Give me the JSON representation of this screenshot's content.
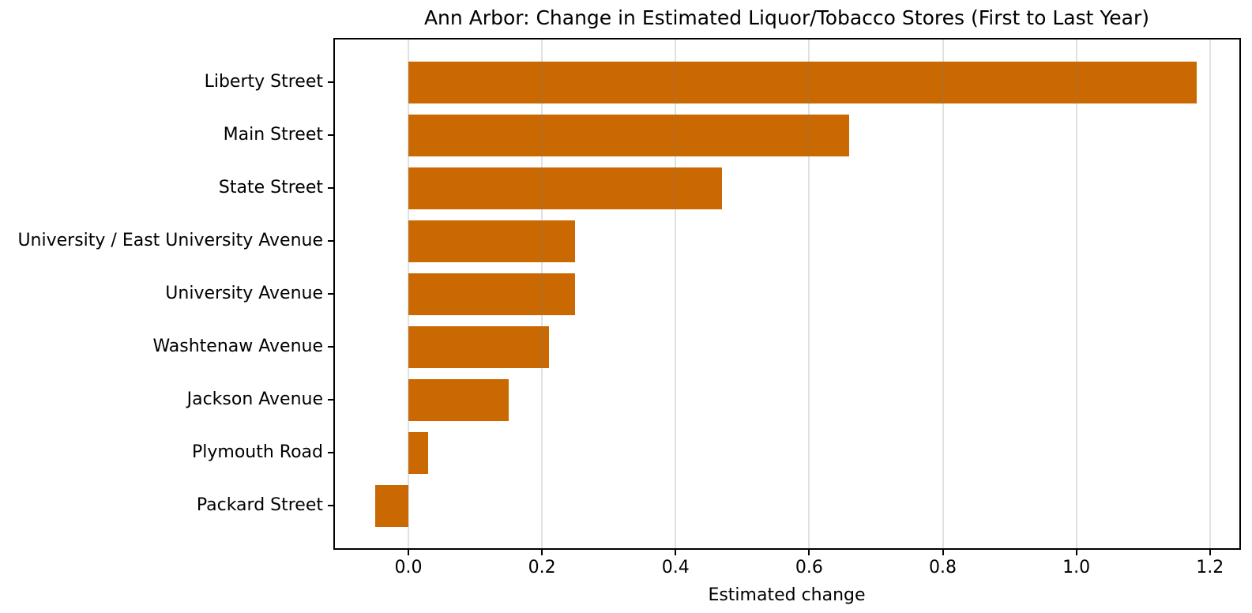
{
  "chart_data": {
    "type": "bar",
    "orientation": "horizontal",
    "title": "Ann Arbor: Change in Estimated Liquor/Tobacco Stores (First to Last Year)",
    "xlabel": "Estimated change",
    "ylabel": "",
    "categories": [
      "Liberty Street",
      "Main Street",
      "State Street",
      "University / East University Avenue",
      "University Avenue",
      "Washtenaw Avenue",
      "Jackson Avenue",
      "Plymouth Road",
      "Packard Street"
    ],
    "values": [
      1.18,
      0.66,
      0.47,
      0.25,
      0.25,
      0.21,
      0.15,
      0.03,
      -0.05
    ],
    "xlim": [
      -0.11,
      1.244
    ],
    "xticks": [
      0.0,
      0.2,
      0.4,
      0.6,
      0.8,
      1.0,
      1.2
    ],
    "xtick_labels": [
      "0.0",
      "0.2",
      "0.4",
      "0.6",
      "0.8",
      "1.0",
      "1.2"
    ],
    "bar_color": "#CA6902",
    "grid": true,
    "gridlines_over_bars": true,
    "legend_position": "none",
    "background_color": "#ffffff"
  }
}
